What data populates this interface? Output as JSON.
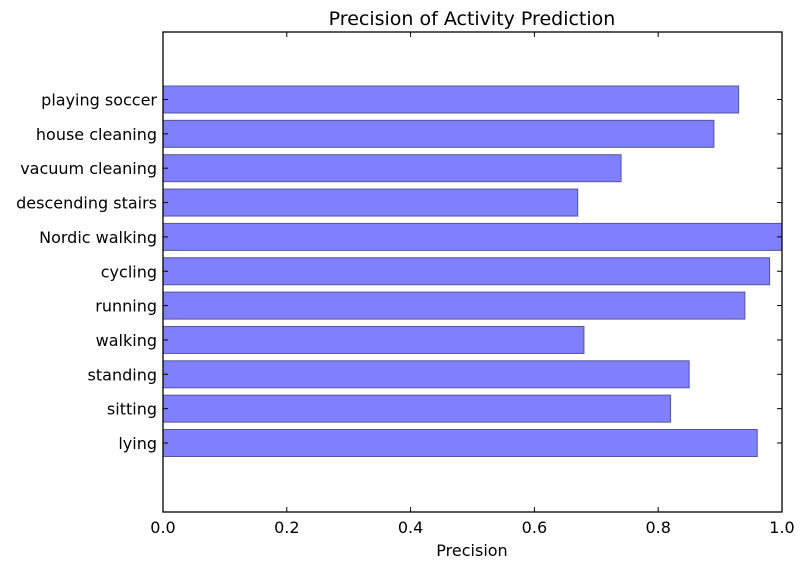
{
  "chart_data": {
    "type": "bar",
    "orientation": "horizontal",
    "title": "Precision of Activity Prediction",
    "xlabel": "Precision",
    "ylabel": "",
    "categories": [
      "lying",
      "sitting",
      "standing",
      "walking",
      "running",
      "cycling",
      "Nordic walking",
      "descending stairs",
      "vacuum cleaning",
      "house cleaning",
      "playing soccer"
    ],
    "values": [
      0.96,
      0.82,
      0.85,
      0.68,
      0.94,
      0.98,
      1.0,
      0.67,
      0.74,
      0.89,
      0.93
    ],
    "xlim": [
      0.0,
      1.0
    ],
    "xticks": [
      "0.0",
      "0.2",
      "0.4",
      "0.6",
      "0.8",
      "1.0"
    ],
    "grid": false,
    "legend": "none",
    "colors": {
      "bar_fill": "#8080ff",
      "bar_edge": "#555599",
      "axis": "#000000"
    }
  }
}
